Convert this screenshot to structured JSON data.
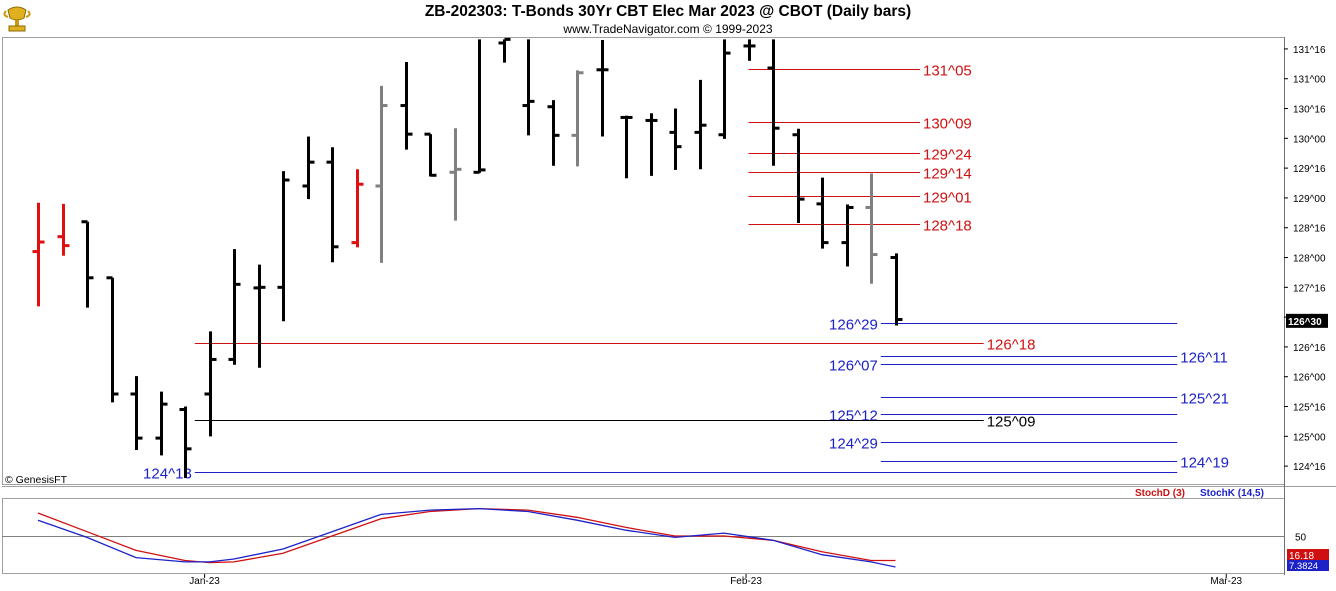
{
  "header": {
    "title": "ZB-202303:  T-Bonds 30Yr CBT Elec Mar 2023 @ CBOT  (Daily bars)",
    "subtitle": "www.TradeNavigator.com © 1999-2023",
    "credit": "© GenesisFT",
    "logo_icon": "gold-trophy-logo-icon"
  },
  "indicator": {
    "stochd_label": "StochD (3)",
    "stochk_label": "StochK (14,5)",
    "stochd_color": "#d01010",
    "stochk_color": "#1c22c8",
    "level_label": "50",
    "stochd_value": "16.18",
    "stochk_value": "7.3824"
  },
  "chart_data": {
    "type": "ohlc",
    "title": "ZB-202303:  T-Bonds 30Yr CBT Elec Mar 2023 @ CBOT  (Daily bars)",
    "price_unit": "points and 32nds (shown as A^B = A + B/32)",
    "ylim": [
      124.2,
      131.7
    ],
    "y_ticks": [
      {
        "value": 124.5,
        "label": "124^16"
      },
      {
        "value": 125,
        "label": "125^00"
      },
      {
        "value": 125.5,
        "label": "125^16"
      },
      {
        "value": 126,
        "label": "126^00"
      },
      {
        "value": 126.5,
        "label": "126^16"
      },
      {
        "value": 127,
        "label": "127^00"
      },
      {
        "value": 127.5,
        "label": "127^16"
      },
      {
        "value": 128,
        "label": "128^00"
      },
      {
        "value": 128.5,
        "label": "128^16"
      },
      {
        "value": 129,
        "label": "129^00"
      },
      {
        "value": 129.5,
        "label": "129^16"
      },
      {
        "value": 130,
        "label": "130^00"
      },
      {
        "value": 130.5,
        "label": "130^16"
      },
      {
        "value": 131,
        "label": "131^00"
      },
      {
        "value": 131.5,
        "label": "131^16"
      }
    ],
    "x_ticks": [
      {
        "index": 6.8,
        "label": "Jan-23"
      },
      {
        "index": 28.9,
        "label": "Feb-23"
      },
      {
        "index": 48.5,
        "label": "Mar-23"
      }
    ],
    "last_price_label": "126^30",
    "last_price": 126.9375,
    "bars": [
      {
        "o": 128.1,
        "h": 128.92,
        "l": 127.18,
        "c": 128.26,
        "color": "#e01010"
      },
      {
        "o": 128.35,
        "h": 128.9,
        "l": 128.03,
        "c": 128.2,
        "color": "#e01010"
      },
      {
        "o": 128.6,
        "h": 128.6,
        "l": 127.16,
        "c": 127.66,
        "color": "#000000"
      },
      {
        "o": 127.66,
        "h": 127.66,
        "l": 125.57,
        "c": 125.71,
        "color": "#000000"
      },
      {
        "o": 125.71,
        "h": 126.01,
        "l": 124.77,
        "c": 124.97,
        "color": "#000000"
      },
      {
        "o": 124.97,
        "h": 125.75,
        "l": 124.68,
        "c": 125.54,
        "color": "#000000"
      },
      {
        "o": 125.45,
        "h": 125.5,
        "l": 124.3,
        "c": 124.79,
        "color": "#000000"
      },
      {
        "o": 125.71,
        "h": 126.76,
        "l": 125.0,
        "c": 126.29,
        "color": "#000000"
      },
      {
        "o": 126.29,
        "h": 128.14,
        "l": 126.2,
        "c": 127.55,
        "color": "#000000"
      },
      {
        "o": 127.49,
        "h": 127.88,
        "l": 126.15,
        "c": 127.5,
        "color": "#000000"
      },
      {
        "o": 127.5,
        "h": 129.45,
        "l": 126.93,
        "c": 129.3,
        "color": "#000000"
      },
      {
        "o": 129.2,
        "h": 130.03,
        "l": 128.98,
        "c": 129.6,
        "color": "#000000"
      },
      {
        "o": 129.6,
        "h": 129.85,
        "l": 127.92,
        "c": 128.18,
        "color": "#000000"
      },
      {
        "o": 128.25,
        "h": 129.48,
        "l": 128.17,
        "c": 129.23,
        "color": "#e01010"
      },
      {
        "o": 129.2,
        "h": 130.88,
        "l": 127.91,
        "c": 130.55,
        "color": "#808080"
      },
      {
        "o": 130.55,
        "h": 131.28,
        "l": 129.81,
        "c": 130.07,
        "color": "#000000"
      },
      {
        "o": 130.07,
        "h": 130.07,
        "l": 129.36,
        "c": 129.38,
        "color": "#000000"
      },
      {
        "o": 129.43,
        "h": 130.17,
        "l": 128.62,
        "c": 129.48,
        "color": "#808080"
      },
      {
        "o": 129.43,
        "h": 131.66,
        "l": 129.42,
        "c": 129.47,
        "color": "#000000"
      },
      {
        "o": 131.6,
        "h": 131.66,
        "l": 131.27,
        "c": 131.66,
        "color": "#000000"
      },
      {
        "o": 130.55,
        "h": 131.66,
        "l": 130.05,
        "c": 130.62,
        "color": "#000000"
      },
      {
        "o": 130.53,
        "h": 130.64,
        "l": 129.54,
        "c": 130.05,
        "color": "#000000"
      },
      {
        "o": 130.05,
        "h": 131.14,
        "l": 129.53,
        "c": 131.1,
        "color": "#808080"
      },
      {
        "o": 131.15,
        "h": 131.65,
        "l": 130.03,
        "c": 131.15,
        "color": "#000000"
      },
      {
        "o": 130.35,
        "h": 130.38,
        "l": 129.33,
        "c": 130.35,
        "color": "#000000"
      },
      {
        "o": 130.3,
        "h": 130.42,
        "l": 129.37,
        "c": 130.3,
        "color": "#000000"
      },
      {
        "o": 130.1,
        "h": 130.5,
        "l": 129.47,
        "c": 129.86,
        "color": "#000000"
      },
      {
        "o": 130.1,
        "h": 130.98,
        "l": 129.48,
        "c": 130.22,
        "color": "#000000"
      },
      {
        "o": 130.06,
        "h": 131.66,
        "l": 129.99,
        "c": 131.43,
        "color": "#000000"
      },
      {
        "o": 131.55,
        "h": 131.66,
        "l": 131.3,
        "c": 131.55,
        "color": "#000000"
      },
      {
        "o": 131.18,
        "h": 131.66,
        "l": 129.54,
        "c": 130.17,
        "color": "#000000"
      },
      {
        "o": 130.06,
        "h": 130.16,
        "l": 128.58,
        "c": 128.98,
        "color": "#000000"
      },
      {
        "o": 128.9,
        "h": 129.34,
        "l": 128.15,
        "c": 128.25,
        "color": "#000000"
      },
      {
        "o": 128.25,
        "h": 128.89,
        "l": 127.85,
        "c": 128.84,
        "color": "#000000"
      },
      {
        "o": 128.84,
        "h": 129.41,
        "l": 127.56,
        "c": 128.05,
        "color": "#808080"
      },
      {
        "o": 128.0,
        "h": 128.07,
        "l": 126.86,
        "c": 126.96,
        "color": "#000000"
      }
    ],
    "support_resistance_lines": [
      {
        "label": "131^05",
        "value": 131.156,
        "from": 29,
        "to": 36,
        "color": "#d01010",
        "label_side": "right"
      },
      {
        "label": "130^09",
        "value": 130.281,
        "from": 29,
        "to": 36,
        "color": "#d01010",
        "label_side": "right"
      },
      {
        "label": "129^24",
        "value": 129.75,
        "from": 29,
        "to": 36,
        "color": "#d01010",
        "label_side": "right"
      },
      {
        "label": "129^14",
        "value": 129.4375,
        "from": 29,
        "to": 36,
        "color": "#d01010",
        "label_side": "right"
      },
      {
        "label": "129^01",
        "value": 129.031,
        "from": 29,
        "to": 36,
        "color": "#d01010",
        "label_side": "right"
      },
      {
        "label": "128^18",
        "value": 128.5625,
        "from": 29,
        "to": 36,
        "color": "#d01010",
        "label_side": "right"
      },
      {
        "label": "126^29",
        "value": 126.906,
        "from": 34.4,
        "to": 46.5,
        "color": "#1c22c8",
        "label_side": "left"
      },
      {
        "label": "126^18",
        "value": 126.5625,
        "from": 6.4,
        "to": 38.6,
        "color": "#d01010",
        "label_side": "right"
      },
      {
        "label": "126^11",
        "value": 126.344,
        "from": 34.4,
        "to": 46.5,
        "color": "#1c22c8",
        "label_side": "right"
      },
      {
        "label": "126^07",
        "value": 126.219,
        "from": 34.4,
        "to": 46.5,
        "color": "#1c22c8",
        "label_side": "left"
      },
      {
        "label": "125^21",
        "value": 125.656,
        "from": 34.4,
        "to": 46.5,
        "color": "#1c22c8",
        "label_side": "right"
      },
      {
        "label": "125^12",
        "value": 125.375,
        "from": 34.4,
        "to": 46.5,
        "color": "#1c22c8",
        "label_side": "left"
      },
      {
        "label": "125^09",
        "value": 125.281,
        "from": 6.4,
        "to": 38.6,
        "color": "#000000",
        "label_side": "right"
      },
      {
        "label": "124^29",
        "value": 124.906,
        "from": 34.4,
        "to": 46.5,
        "color": "#1c22c8",
        "label_side": "left"
      },
      {
        "label": "124^19",
        "value": 124.594,
        "from": 34.4,
        "to": 46.5,
        "color": "#1c22c8",
        "label_side": "right"
      },
      {
        "label": "124^13",
        "value": 124.406,
        "from": 6.4,
        "to": 46.5,
        "color": "#1c22c8",
        "label_side": "left"
      }
    ],
    "stochastic": {
      "ylim": [
        0,
        100
      ],
      "level": 50,
      "x": [
        0,
        2,
        4,
        6,
        7,
        8,
        10,
        12,
        14,
        16,
        18,
        20,
        22,
        24,
        26,
        28,
        30,
        32,
        34,
        35
      ],
      "stochk": [
        72,
        48,
        20,
        14,
        14,
        18,
        32,
        56,
        80,
        86,
        88,
        84,
        72,
        58,
        48,
        54,
        44,
        24,
        14,
        7
      ],
      "stochd": [
        82,
        56,
        30,
        16,
        13,
        14,
        26,
        50,
        74,
        84,
        88,
        86,
        76,
        62,
        50,
        50,
        44,
        28,
        16,
        16
      ]
    }
  }
}
